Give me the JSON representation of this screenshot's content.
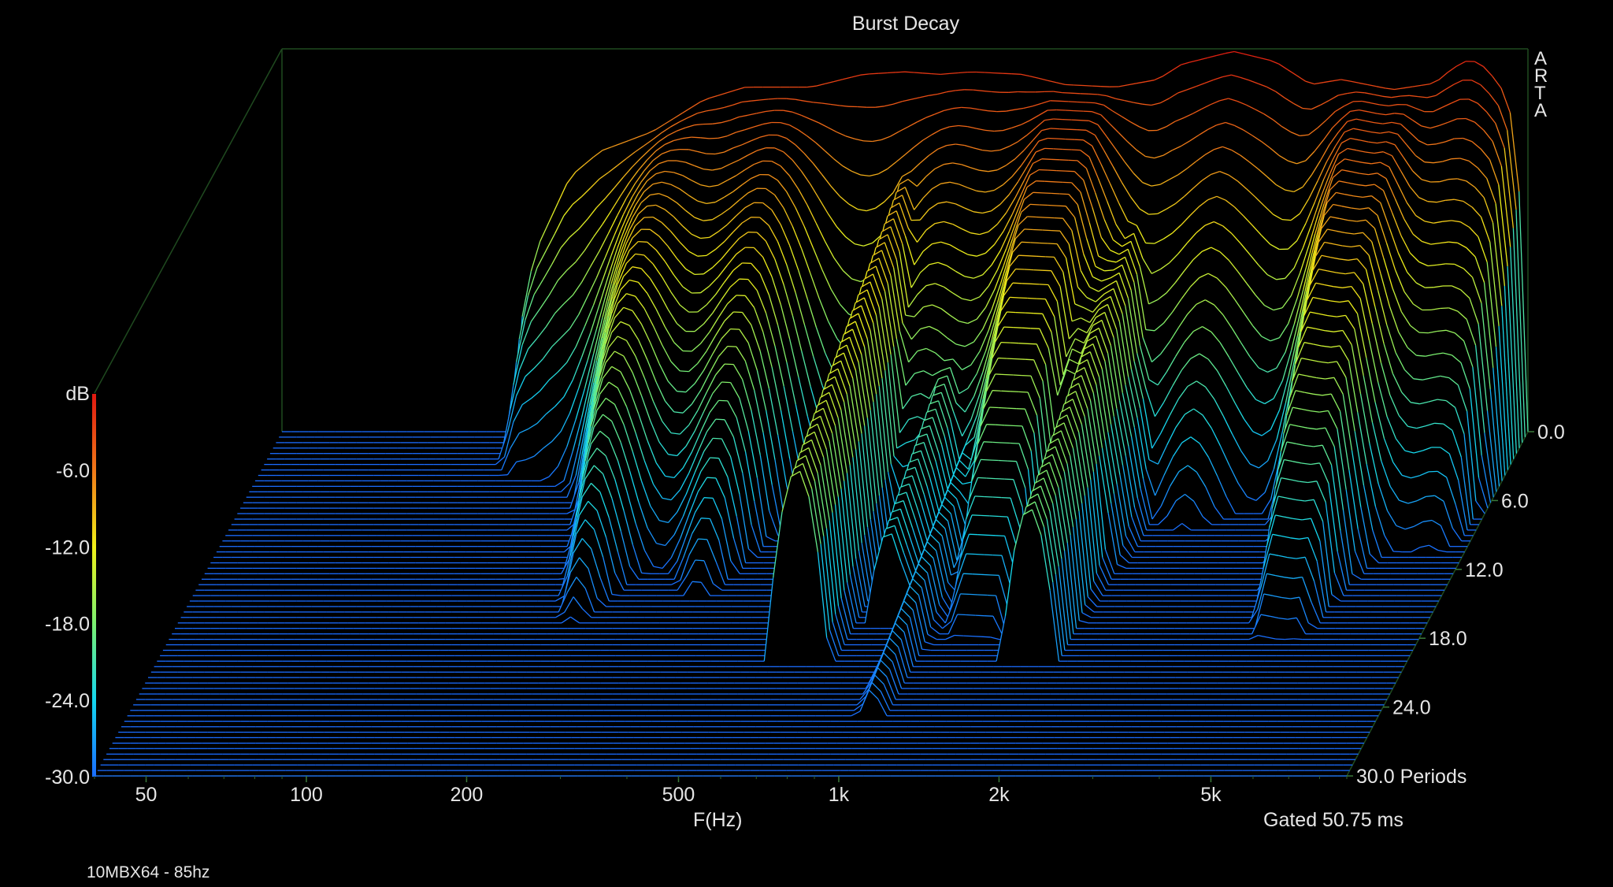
{
  "chart_data": {
    "type": "waterfall",
    "title": "Burst Decay",
    "brand": "ARTA",
    "xlabel": "F(Hz)",
    "x_scale": "log",
    "x_ticks": [
      50,
      100,
      200,
      500,
      1000,
      2000,
      5000
    ],
    "x_tick_labels": [
      "50",
      "100",
      "200",
      "500",
      "1k",
      "2k",
      "5k"
    ],
    "xlim": [
      40,
      9000
    ],
    "z_label": "dB",
    "z_ticks": [
      0,
      -6,
      -12,
      -18,
      -24,
      -30
    ],
    "z_tick_labels": [
      "",
      "-6.0",
      "-12.0",
      "-18.0",
      "-24.0",
      "-30.0"
    ],
    "zlim": [
      -30,
      0
    ],
    "depth_ticks": [
      0,
      6,
      12,
      18,
      24,
      30
    ],
    "depth_tick_labels": [
      "0.0",
      "6.0",
      "12.0",
      "18.0",
      "24.0",
      "30.0 Periods"
    ],
    "depth_range": [
      0,
      30
    ],
    "gated_label": "Gated 50.75 ms",
    "caption": "10MBX64 - 85hz",
    "colormap": [
      "#1a6cff",
      "#14d7f0",
      "#7af070",
      "#f0f018",
      "#f07818",
      "#e01810"
    ],
    "initial_response": [
      [
        110,
        -24
      ],
      [
        120,
        -16
      ],
      [
        140,
        -10
      ],
      [
        160,
        -8
      ],
      [
        200,
        -6.5
      ],
      [
        250,
        -4
      ],
      [
        300,
        -3
      ],
      [
        400,
        -3
      ],
      [
        500,
        -2
      ],
      [
        600,
        -1.8
      ],
      [
        700,
        -2
      ],
      [
        800,
        -1.8
      ],
      [
        1000,
        -2
      ],
      [
        1200,
        -2.8
      ],
      [
        1500,
        -3
      ],
      [
        1800,
        -2.4
      ],
      [
        2000,
        -1.2
      ],
      [
        2500,
        -0.2
      ],
      [
        3000,
        -1
      ],
      [
        3500,
        -2.8
      ],
      [
        4000,
        -2.4
      ],
      [
        5000,
        -3.2
      ],
      [
        6000,
        -2.7
      ],
      [
        6500,
        -1.5
      ],
      [
        7000,
        -0.8
      ],
      [
        7500,
        -1.5
      ],
      [
        8000,
        -3
      ],
      [
        8500,
        -6
      ],
      [
        9000,
        -22
      ]
    ],
    "resonances": [
      {
        "freq": 640,
        "level_db": -7,
        "decay_periods": 20
      },
      {
        "freq": 870,
        "level_db": -15,
        "decay_periods": 17
      },
      {
        "freq": 1000,
        "level_db": -20,
        "decay_periods": 25
      },
      {
        "freq": 1600,
        "level_db": -8,
        "decay_periods": 10
      },
      {
        "freq": 1750,
        "level_db": -10,
        "decay_periods": 20
      },
      {
        "freq": 1900,
        "level_db": -16,
        "decay_periods": 12
      },
      {
        "freq": 6800,
        "level_db": -24,
        "decay_periods": 13
      }
    ]
  }
}
